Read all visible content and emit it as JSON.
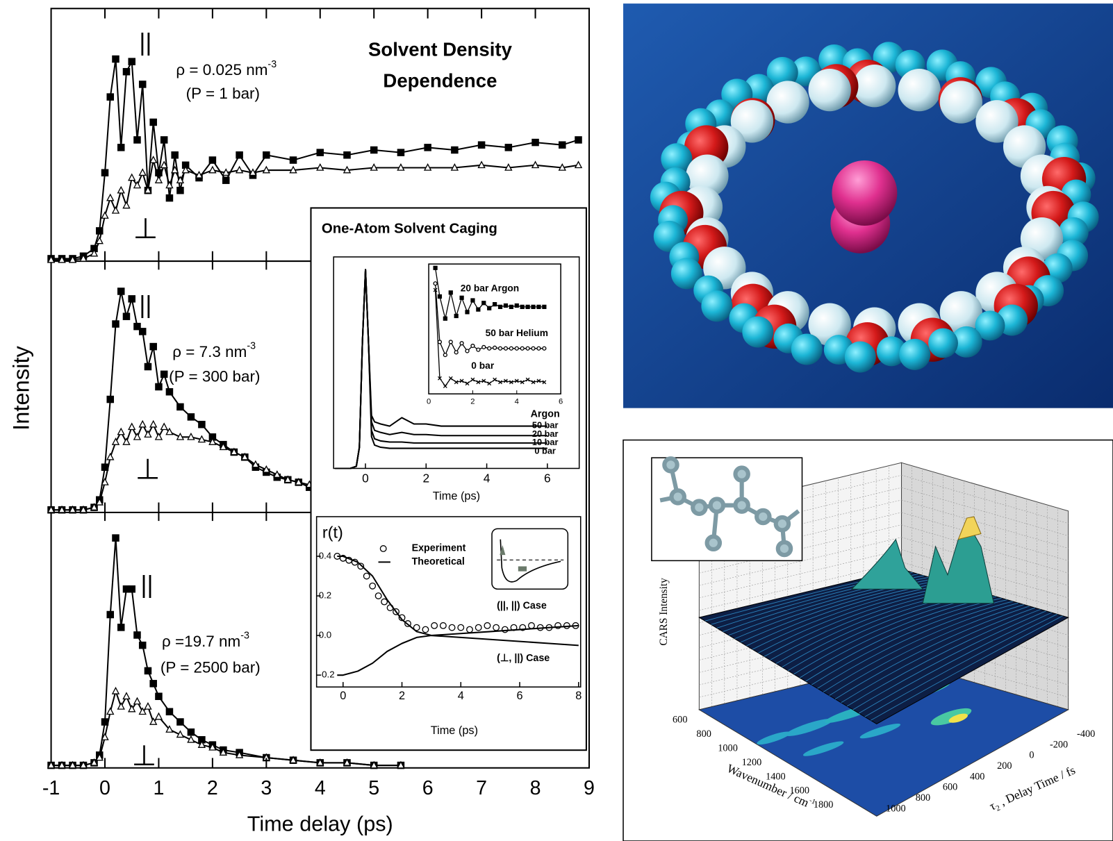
{
  "chart_data": [
    {
      "type": "line",
      "title": "Solvent Density Dependence",
      "ylabel": "Intensity",
      "xlim": [
        -1,
        9
      ],
      "ylim": [
        0,
        100
      ],
      "x": [
        -1,
        -0.8,
        -0.6,
        -0.4,
        -0.2,
        -0.1,
        0,
        0.1,
        0.2,
        0.3,
        0.4,
        0.5,
        0.6,
        0.7,
        0.8,
        0.9,
        1,
        1.1,
        1.2,
        1.3,
        1.4,
        1.5,
        1.75,
        2,
        2.25,
        2.5,
        2.75,
        3,
        3.5,
        4,
        4.5,
        5,
        5.5,
        6,
        6.5,
        7,
        7.5,
        8,
        8.5,
        8.8
      ],
      "series": [
        {
          "name": "||",
          "color": "#000000",
          "marker": "square",
          "values": [
            1,
            1,
            1,
            2,
            5,
            12,
            35,
            65,
            80,
            45,
            75,
            79,
            48,
            70,
            28,
            55,
            35,
            48,
            25,
            42,
            28,
            38,
            33,
            40,
            32,
            42,
            34,
            42,
            40,
            43,
            42,
            44,
            43,
            45,
            44,
            46,
            45,
            47,
            46,
            48
          ]
        },
        {
          "name": "⊥",
          "color": "#000000",
          "marker": "triangle",
          "values": [
            0.5,
            0.5,
            0.5,
            1,
            3,
            8,
            18,
            25,
            20,
            28,
            22,
            33,
            30,
            35,
            28,
            40,
            32,
            38,
            30,
            36,
            32,
            36,
            34,
            36,
            35,
            36,
            35,
            36,
            36,
            37,
            36,
            37,
            37,
            37,
            37,
            38,
            37,
            38,
            37,
            38
          ]
        }
      ],
      "density": "ρ =  0.025 nm",
      "density_sup": "-3",
      "pressure": "(P = 1 bar)"
    },
    {
      "type": "line",
      "xlim": [
        -1,
        9
      ],
      "ylim": [
        0,
        100
      ],
      "x": [
        -1,
        -0.8,
        -0.6,
        -0.4,
        -0.2,
        -0.1,
        0,
        0.1,
        0.2,
        0.3,
        0.4,
        0.5,
        0.6,
        0.7,
        0.8,
        0.9,
        1,
        1.1,
        1.2,
        1.4,
        1.6,
        1.8,
        2,
        2.2,
        2.4,
        2.6,
        2.8,
        3,
        3.2,
        3.4,
        3.6,
        3.8
      ],
      "series": [
        {
          "name": "||",
          "color": "#000000",
          "marker": "square",
          "values": [
            1,
            1,
            1,
            1,
            2,
            5,
            18,
            45,
            75,
            88,
            78,
            85,
            74,
            72,
            58,
            66,
            50,
            55,
            48,
            42,
            38,
            35,
            30,
            27,
            24,
            22,
            18,
            16,
            14,
            13,
            12,
            10
          ]
        },
        {
          "name": "⊥",
          "color": "#000000",
          "marker": "triangle",
          "values": [
            1,
            1,
            1,
            1,
            2,
            4,
            12,
            22,
            28,
            32,
            28,
            34,
            30,
            35,
            31,
            35,
            30,
            34,
            32,
            30,
            30,
            29,
            28,
            26,
            24,
            22,
            19,
            17,
            15,
            13,
            12,
            11
          ]
        }
      ],
      "density": "ρ =  7.3 nm",
      "density_sup": "-3",
      "pressure": "(P = 300 bar)"
    },
    {
      "type": "line",
      "xlabel": "Time delay (ps)",
      "xlim": [
        -1,
        9
      ],
      "ylim": [
        0,
        100
      ],
      "xticks": [
        -1,
        0,
        1,
        2,
        3,
        4,
        5,
        6,
        7,
        8,
        9
      ],
      "x": [
        -1,
        -0.8,
        -0.6,
        -0.4,
        -0.2,
        -0.1,
        0,
        0.1,
        0.2,
        0.3,
        0.4,
        0.5,
        0.6,
        0.7,
        0.8,
        0.9,
        1,
        1.2,
        1.4,
        1.6,
        1.8,
        2,
        2.2,
        2.5,
        3,
        3.5,
        4,
        4.5,
        5,
        5.5
      ],
      "series": [
        {
          "name": "||",
          "color": "#000000",
          "marker": "square",
          "values": [
            1,
            1,
            1,
            1,
            2,
            5,
            18,
            60,
            90,
            55,
            70,
            70,
            52,
            48,
            38,
            33,
            28,
            22,
            18,
            14,
            11,
            9,
            7,
            6,
            4,
            3,
            2,
            2,
            1,
            1
          ]
        },
        {
          "name": "⊥",
          "color": "#000000",
          "marker": "triangle",
          "values": [
            1,
            1,
            1,
            1,
            2,
            4,
            12,
            22,
            30,
            24,
            28,
            23,
            26,
            22,
            24,
            18,
            20,
            15,
            13,
            11,
            9,
            8,
            6,
            5,
            4,
            3,
            2,
            2,
            1,
            1
          ]
        }
      ],
      "density": "ρ =19.7 nm",
      "density_sup": "-3",
      "pressure": "(P = 2500 bar)"
    },
    {
      "type": "line",
      "title": "One-Atom Solvent Caging",
      "xlabel": "Time (ps)",
      "legend_title": "Argon",
      "xlim": [
        -1.05,
        7.05
      ],
      "ylim": [
        0,
        100
      ],
      "xticks": [
        0,
        2,
        4,
        6
      ],
      "x": [
        -1,
        -0.5,
        -0.3,
        -0.2,
        -0.1,
        0,
        0.1,
        0.2,
        0.3,
        0.5,
        0.8,
        1.2,
        1.6,
        2,
        2.5,
        3,
        4,
        5,
        6
      ],
      "series": [
        {
          "name": "50 bar",
          "color": "#000000",
          "values": [
            0,
            0,
            1,
            10,
            60,
            94,
            60,
            25,
            22,
            21,
            20,
            24,
            21,
            21,
            20,
            20,
            20,
            20,
            20
          ]
        },
        {
          "name": "20 bar",
          "color": "#000000",
          "values": [
            0,
            0,
            1,
            10,
            60,
            94,
            60,
            22,
            18,
            17,
            16,
            17,
            16,
            16,
            15.5,
            15.5,
            15.5,
            15.5,
            15.5
          ]
        },
        {
          "name": "10 bar",
          "color": "#000000",
          "values": [
            0,
            0,
            1,
            10,
            60,
            94,
            60,
            18,
            14,
            13,
            12.5,
            12.5,
            12,
            12,
            12,
            12,
            12,
            12,
            12
          ]
        },
        {
          "name": "0 bar",
          "color": "#000000",
          "values": [
            0,
            0,
            1,
            10,
            60,
            94,
            60,
            15,
            11,
            10,
            9.5,
            9.5,
            9.5,
            9.5,
            9.5,
            9.5,
            9.5,
            9.5,
            9.5
          ]
        }
      ]
    },
    {
      "type": "line",
      "xlim": [
        0,
        6
      ],
      "ylim": [
        0,
        100
      ],
      "xticks": [
        0,
        2,
        4,
        6
      ],
      "x": [
        0.3,
        0.5,
        0.75,
        1,
        1.25,
        1.5,
        1.75,
        2,
        2.25,
        2.5,
        2.75,
        3,
        3.25,
        3.5,
        3.75,
        4,
        4.25,
        4.5,
        4.75,
        5,
        5.25
      ],
      "series": [
        {
          "name": "20 bar Argon",
          "color": "#000000",
          "marker": "square",
          "values": [
            97,
            75,
            58,
            78,
            60,
            74,
            63,
            72,
            65,
            70,
            66,
            69,
            67,
            68,
            67,
            68,
            67,
            67,
            67,
            67,
            67
          ]
        },
        {
          "name": "50 bar Helium",
          "color": "#000000",
          "marker": "circle",
          "values": [
            85,
            40,
            30,
            40,
            32,
            39,
            33,
            37,
            34,
            36,
            35,
            35.5,
            35,
            35,
            35,
            35,
            35,
            35,
            35,
            35,
            35
          ]
        },
        {
          "name": "0 bar",
          "color": "#000000",
          "marker": "cross",
          "values": [
            80,
            12,
            6,
            12,
            9,
            10,
            8,
            11,
            9,
            10,
            8,
            11,
            9,
            10,
            9,
            10,
            9,
            11,
            9,
            10,
            9
          ]
        }
      ]
    },
    {
      "type": "line",
      "ylabel": "r(t)",
      "xlabel": "Time (ps)",
      "xlim": [
        -0.9,
        8.07
      ],
      "ylim": [
        -0.26,
        0.6
      ],
      "xticks": [
        0,
        2,
        4,
        6,
        8
      ],
      "yticks": [
        0.4,
        0.2,
        {
          "value": 0,
          "label": "0.0"
        },
        -0.2
      ],
      "annotations": [
        "(||, ||)  Case",
        "(⊥, ||)  Case"
      ],
      "series": [
        {
          "name": "Experiment",
          "color": "#000000",
          "marker": "circle",
          "line": false,
          "x": [
            -0.2,
            0,
            0.2,
            0.4,
            0.6,
            0.8,
            1,
            1.2,
            1.4,
            1.6,
            1.8,
            2,
            2.2,
            2.5,
            2.8,
            3.1,
            3.4,
            3.7,
            4,
            4.3,
            4.6,
            4.9,
            5.2,
            5.5,
            5.8,
            6.1,
            6.4,
            6.7,
            7,
            7.3,
            7.6,
            7.9
          ],
          "values": [
            0.4,
            0.39,
            0.38,
            0.37,
            0.35,
            0.3,
            0.25,
            0.2,
            0.17,
            0.14,
            0.12,
            0.09,
            0.06,
            0.04,
            0.03,
            0.05,
            0.05,
            0.04,
            0.04,
            0.03,
            0.04,
            0.05,
            0.04,
            0.03,
            0.04,
            0.04,
            0.05,
            0.04,
            0.04,
            0.05,
            0.05,
            0.05
          ]
        },
        {
          "name": "Theoretical",
          "color": "#000000",
          "x": [
            -0.2,
            0,
            0.5,
            1,
            1.5,
            2,
            2.5,
            3,
            4,
            5,
            6,
            7,
            8
          ],
          "values": [
            0.4,
            0.4,
            0.37,
            0.3,
            0.18,
            0.08,
            0.02,
            0,
            0.01,
            0.02,
            0.03,
            0.04,
            0.05
          ]
        },
        {
          "color": "#000000",
          "x": [
            -0.2,
            0,
            0.5,
            1,
            1.5,
            2,
            2.5,
            3,
            4,
            5,
            6,
            7,
            8
          ],
          "values": [
            -0.2,
            -0.2,
            -0.18,
            -0.14,
            -0.08,
            -0.04,
            -0.01,
            0,
            -0.01,
            -0.02,
            -0.03,
            -0.04,
            -0.05
          ]
        }
      ]
    },
    {
      "type": "surface3d",
      "zlabel": "CARS Intensity",
      "xlabel": "Wavenumber / cm",
      "xlabel_sup": "-1",
      "xticks": [
        600,
        800,
        1000,
        1200,
        1400,
        1600,
        1800
      ],
      "ylabel_symbol": "τ",
      "ylabel_sub": "2",
      "ylabel": " , Delay Time / fs",
      "yticks": [
        -400,
        -200,
        0,
        200,
        400,
        600,
        800,
        1000
      ]
    }
  ]
}
